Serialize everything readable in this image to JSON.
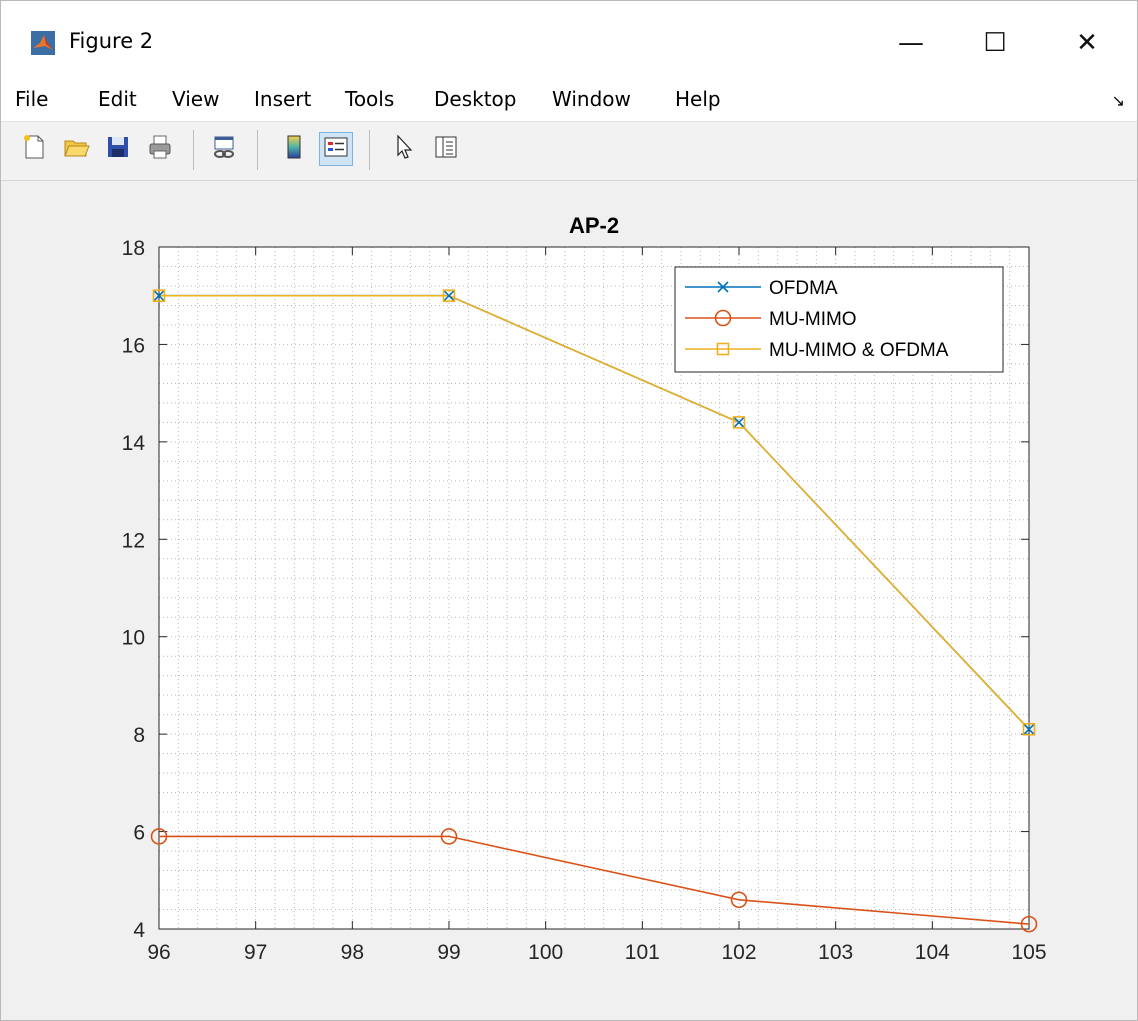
{
  "window": {
    "title": "Figure 2",
    "controls": {
      "minimize": "—",
      "maximize": "☐",
      "close": "✕"
    }
  },
  "menu": {
    "items": [
      "File",
      "Edit",
      "View",
      "Insert",
      "Tools",
      "Desktop",
      "Window",
      "Help"
    ],
    "overflow": "↘"
  },
  "toolbar": {
    "buttons": [
      {
        "name": "new-figure-icon",
        "active": false
      },
      {
        "name": "open-file-icon",
        "active": false
      },
      {
        "name": "save-figure-icon",
        "active": false
      },
      {
        "name": "print-figure-icon",
        "active": false
      },
      {
        "name": "link-plot-icon",
        "active": false
      },
      {
        "name": "insert-colorbar-icon",
        "active": false
      },
      {
        "name": "insert-legend-icon",
        "active": true
      },
      {
        "name": "edit-plot-pointer-icon",
        "active": false
      },
      {
        "name": "property-inspector-icon",
        "active": false
      }
    ]
  },
  "colors": {
    "ofdma": "#0072BD",
    "mu_mimo": "#D95319",
    "mu_mimo_ofdma": "#EDB120",
    "grid": "#b8b8b8"
  },
  "chart_data": {
    "type": "line",
    "title": "AP-2",
    "xlabel": "",
    "ylabel": "",
    "xlim": [
      96,
      105
    ],
    "ylim": [
      4,
      18
    ],
    "xticks": [
      96,
      97,
      98,
      99,
      100,
      101,
      102,
      103,
      104,
      105
    ],
    "yticks": [
      4,
      6,
      8,
      10,
      12,
      14,
      16,
      18
    ],
    "grid": "minor dotted",
    "legend_position": "top-right",
    "series": [
      {
        "name": "OFDMA",
        "marker": "x",
        "color": "#0072BD",
        "x": [
          96,
          99,
          102,
          105
        ],
        "y": [
          17.0,
          17.0,
          14.4,
          8.1
        ]
      },
      {
        "name": "MU-MIMO",
        "marker": "o",
        "color": "#D95319",
        "x": [
          96,
          99,
          102,
          105
        ],
        "y": [
          5.9,
          5.9,
          4.6,
          4.1
        ]
      },
      {
        "name": "MU-MIMO & OFDMA",
        "marker": "s",
        "color": "#EDB120",
        "x": [
          96,
          99,
          102,
          105
        ],
        "y": [
          17.0,
          17.0,
          14.4,
          8.1
        ]
      }
    ]
  }
}
